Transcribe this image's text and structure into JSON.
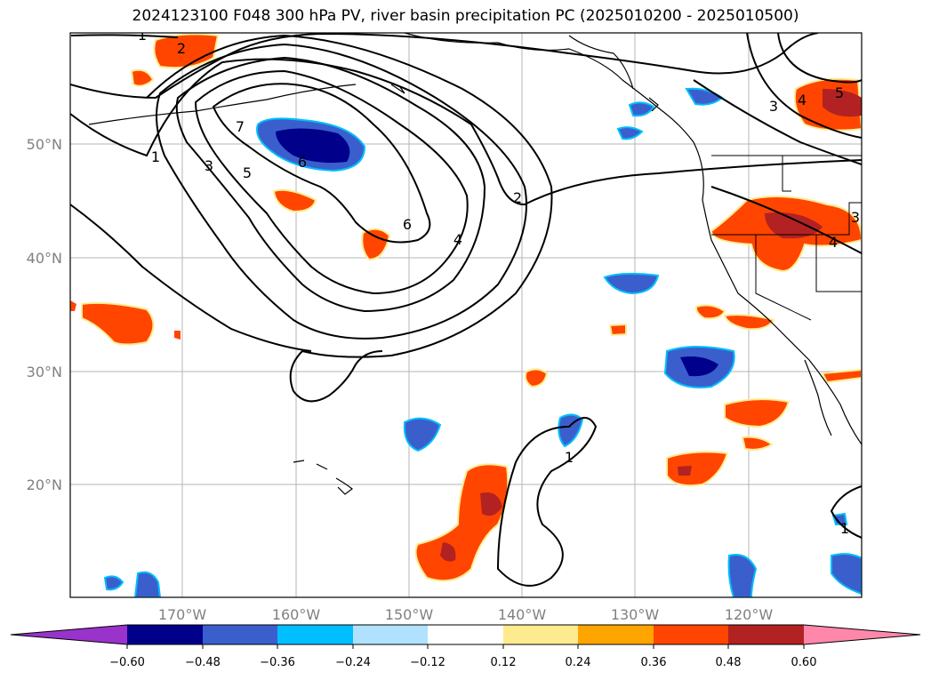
{
  "title": "2024123100 F048 300 hPa PV, river basin precipitation PC (2025010200 - 2025010500)",
  "map": {
    "lon_labels": [
      "170°W",
      "160°W",
      "150°W",
      "140°W",
      "130°W",
      "120°W"
    ],
    "lat_labels": [
      "50°N",
      "40°N",
      "30°N",
      "20°N"
    ],
    "pv_contour_labels": [
      "1",
      "2",
      "3",
      "4",
      "5",
      "6",
      "7"
    ]
  },
  "colorbar": {
    "ticks": [
      "−0.60",
      "−0.48",
      "−0.36",
      "−0.24",
      "−0.12",
      "0.12",
      "0.24",
      "0.36",
      "0.48",
      "0.60"
    ],
    "colors": [
      "#9933cc",
      "#00008b",
      "#3a5fcd",
      "#00bfff",
      "#b0e2ff",
      "#ffffff",
      "#ffeb8f",
      "#ffa500",
      "#ff4500",
      "#b22222",
      "#ff88aa"
    ]
  },
  "colors": {
    "neg_strong": "#00008b",
    "neg_mid": "#3a5fcd",
    "neg_light": "#00bfff",
    "pos_light": "#ffeb8f",
    "pos_mid": "#ff4500",
    "pos_strong": "#b22222"
  }
}
